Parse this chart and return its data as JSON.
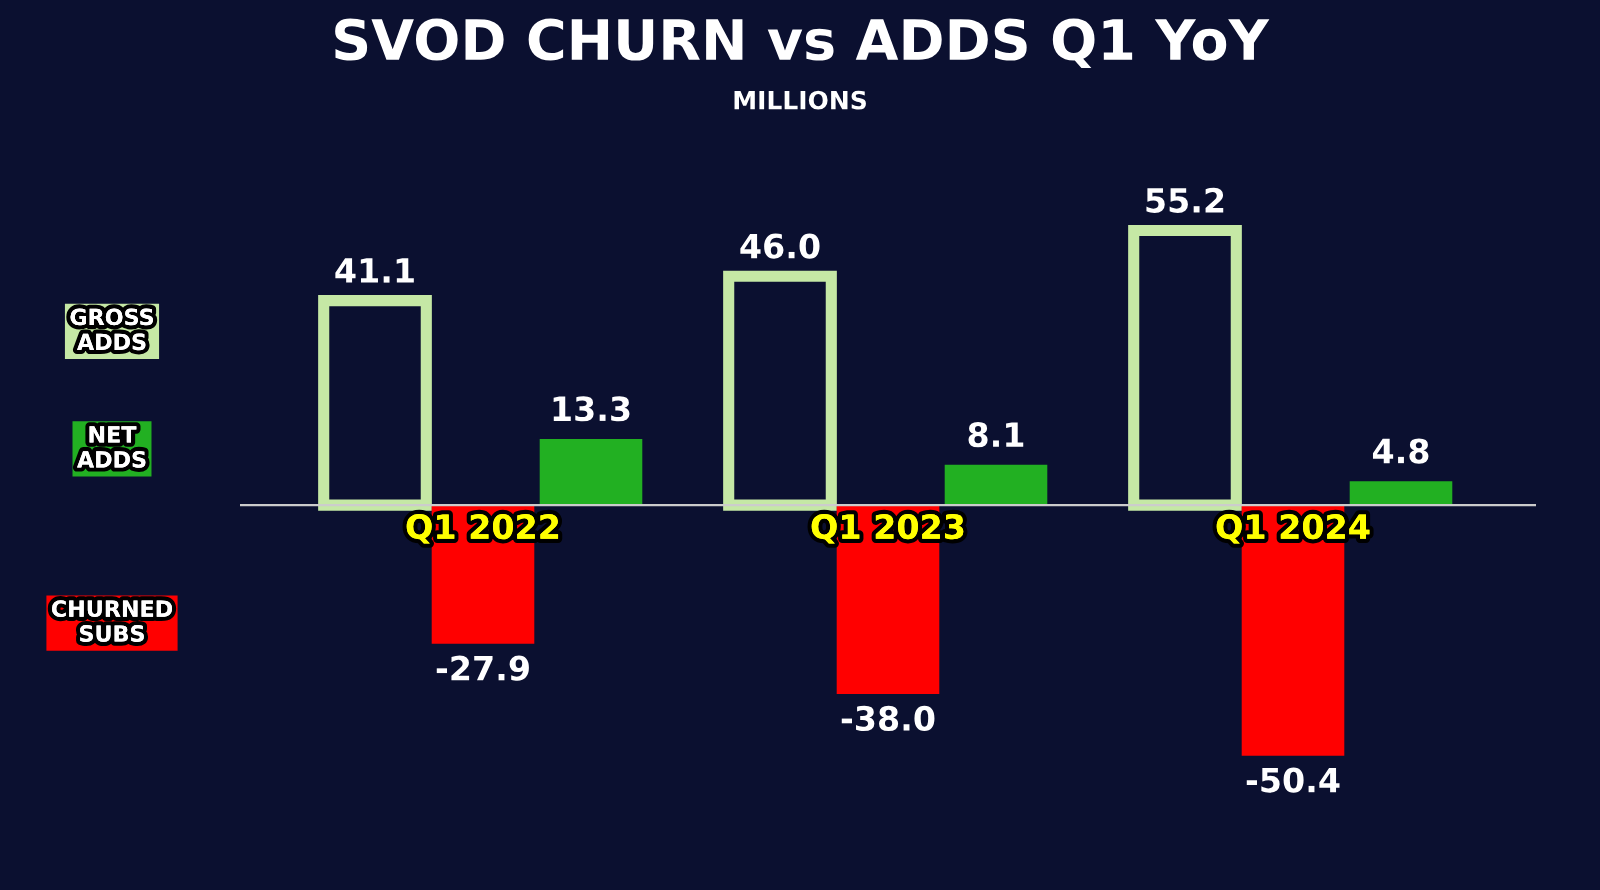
{
  "chart_data": {
    "type": "bar",
    "title": "SVOD CHURN vs ADDS Q1 YoY",
    "subtitle": "MILLIONS",
    "categories": [
      "Q1 2022",
      "Q1 2023",
      "Q1 2024"
    ],
    "series": [
      {
        "name": "GROSS ADDS",
        "color": "#c5e8a5",
        "values": [
          41.1,
          46.0,
          55.2
        ],
        "value_labels": [
          "41.1",
          "46.0",
          "55.2"
        ]
      },
      {
        "name": "CHURNED SUBS",
        "color": "#ff0000",
        "values": [
          -27.9,
          -38.0,
          -50.4
        ],
        "value_labels": [
          "-27.9",
          "-38.0",
          "-50.4"
        ]
      },
      {
        "name": "NET ADDS",
        "color": "#22b022",
        "values": [
          13.3,
          8.1,
          4.8
        ],
        "value_labels": [
          "13.3",
          "8.1",
          "4.8"
        ]
      }
    ],
    "legend": "left"
  }
}
